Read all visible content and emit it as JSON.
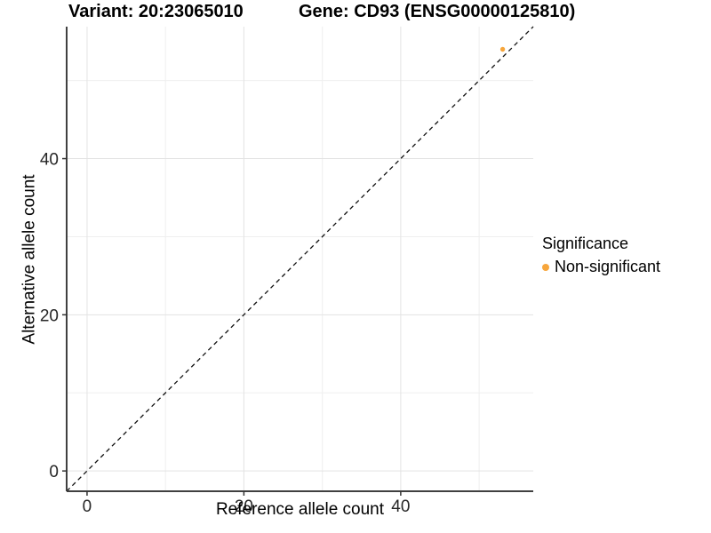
{
  "header": {
    "variant_title": "Variant: 20:23065010",
    "gene_title": "Gene: CD93 (ENSG00000125810)"
  },
  "chart_data": {
    "type": "scatter",
    "title": "Variant: 20:23065010 — Gene: CD93 (ENSG00000125810)",
    "xlabel": "Reference allele count",
    "ylabel": "Alternative allele count",
    "xlim": [
      -2.6,
      56.9
    ],
    "ylim": [
      -2.6,
      56.9
    ],
    "x_ticks": [
      0,
      20,
      40
    ],
    "y_ticks": [
      0,
      20,
      40
    ],
    "x_minor_gridlines": [
      10,
      30,
      50
    ],
    "y_minor_gridlines": [
      10,
      30,
      50
    ],
    "grid": true,
    "legend_position": "right",
    "series": [
      {
        "name": "Non-significant",
        "points": [
          {
            "x": 53,
            "y": 54
          }
        ]
      }
    ],
    "reference_line": {
      "style": "dashed",
      "description": "identity line y = x",
      "from": [
        -2.6,
        -2.6
      ],
      "to": [
        56.9,
        56.9
      ]
    }
  },
  "legend": {
    "title": "Significance",
    "items": [
      {
        "label": "Non-significant",
        "color": "#F7A63C"
      }
    ]
  },
  "colors": {
    "point": "#F7A63C",
    "axis_line": "#404040",
    "tick_mark": "#333333",
    "tick_label": "#262626",
    "grid_major": "#e3e3e3",
    "grid_minor": "#efefef",
    "dashed_line": "#111111",
    "background": "#ffffff"
  }
}
